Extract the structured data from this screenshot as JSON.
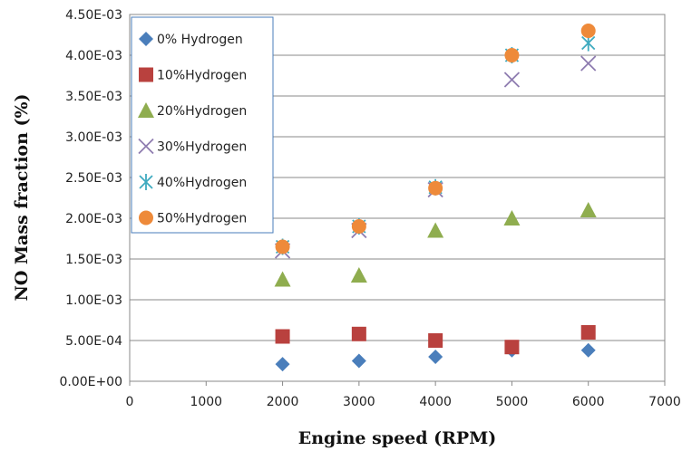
{
  "chart_data": {
    "type": "scatter",
    "title": "",
    "xlabel": "Engine speed (RPM)",
    "ylabel": "NO Mass fraction (%)",
    "xlim": [
      0,
      7000
    ],
    "ylim": [
      0,
      0.0045
    ],
    "x_ticks": [
      0,
      1000,
      2000,
      3000,
      4000,
      5000,
      6000,
      7000
    ],
    "x_tick_labels": [
      "0",
      "1000",
      "2000",
      "3000",
      "4000",
      "5000",
      "6000",
      "7000"
    ],
    "y_ticks": [
      0,
      0.0005,
      0.001,
      0.0015,
      0.002,
      0.0025,
      0.003,
      0.0035,
      0.004,
      0.0045
    ],
    "y_tick_labels": [
      "0.00E+00",
      "5.00E-04",
      "1.00E-03",
      "1.50E-03",
      "2.00E-03",
      "2.50E-03",
      "3.00E-03",
      "3.50E-03",
      "4.00E-03",
      "4.50E-03"
    ],
    "grid": "horizontal",
    "legend_position": "top-left",
    "x": [
      2000,
      3000,
      4000,
      5000,
      6000
    ],
    "series": [
      {
        "name": "0% Hydrogen",
        "marker": "diamond",
        "color": "#4a7ebb",
        "values": [
          0.00021,
          0.00025,
          0.0003,
          0.00038,
          0.00038
        ]
      },
      {
        "name": "10%Hydrogen",
        "marker": "square",
        "color": "#b9413e",
        "values": [
          0.00055,
          0.00058,
          0.0005,
          0.00042,
          0.0006
        ]
      },
      {
        "name": "20%Hydrogen",
        "marker": "triangle",
        "color": "#8fad4f",
        "values": [
          0.00125,
          0.0013,
          0.00185,
          0.002,
          0.0021
        ]
      },
      {
        "name": "30%Hydrogen",
        "marker": "x",
        "color": "#8e7cb0",
        "values": [
          0.0016,
          0.00185,
          0.00235,
          0.0037,
          0.0039
        ]
      },
      {
        "name": "40%Hydrogen",
        "marker": "star",
        "color": "#3eaabf",
        "values": [
          0.00165,
          0.0019,
          0.00238,
          0.004,
          0.00415
        ]
      },
      {
        "name": "50%Hydrogen",
        "marker": "circle",
        "color": "#ee8a3a",
        "values": [
          0.00165,
          0.0019,
          0.00237,
          0.004,
          0.0043
        ]
      }
    ]
  }
}
